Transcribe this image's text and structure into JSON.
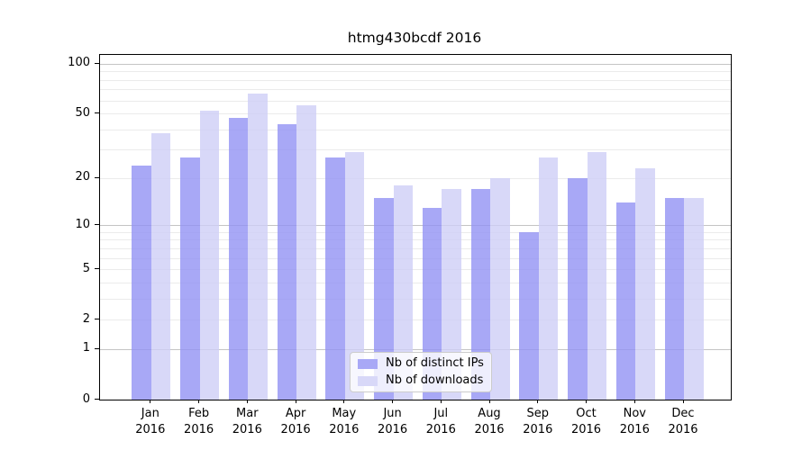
{
  "chart_data": {
    "type": "bar",
    "title": "htmg430bcdf 2016",
    "categories": [
      {
        "line1": "Jan",
        "line2": "2016"
      },
      {
        "line1": "Feb",
        "line2": "2016"
      },
      {
        "line1": "Mar",
        "line2": "2016"
      },
      {
        "line1": "Apr",
        "line2": "2016"
      },
      {
        "line1": "May",
        "line2": "2016"
      },
      {
        "line1": "Jun",
        "line2": "2016"
      },
      {
        "line1": "Jul",
        "line2": "2016"
      },
      {
        "line1": "Aug",
        "line2": "2016"
      },
      {
        "line1": "Sep",
        "line2": "2016"
      },
      {
        "line1": "Oct",
        "line2": "2016"
      },
      {
        "line1": "Nov",
        "line2": "2016"
      },
      {
        "line1": "Dec",
        "line2": "2016"
      }
    ],
    "series": [
      {
        "name": "Nb of distinct IPs",
        "values": [
          24,
          27,
          47,
          43,
          27,
          15,
          13,
          17,
          9,
          20,
          14,
          15
        ],
        "fill": "rgba(146,146,244,0.8)",
        "legend_color": "#a8a8f6"
      },
      {
        "name": "Nb of downloads",
        "values": [
          38,
          52,
          66,
          56,
          29,
          18,
          17,
          20,
          27,
          29,
          23,
          15
        ],
        "fill": "rgba(206,206,246,0.8)",
        "legend_color": "#d8d8f8"
      }
    ],
    "xlabel": "",
    "ylabel": "",
    "yscale": "log1p",
    "ylim": [
      0,
      113
    ],
    "y_ticks": [
      0,
      1,
      2,
      5,
      10,
      20,
      50,
      100
    ],
    "y_major_gridlines": [
      1,
      10,
      100
    ],
    "y_minor_gridlines": [
      2,
      3,
      4,
      5,
      6,
      7,
      8,
      9,
      20,
      30,
      40,
      50,
      60,
      70,
      80,
      90
    ],
    "grid": true,
    "legend_position": "lower center",
    "colors": {
      "major_grid": "#c4c4c4",
      "minor_grid": "#ebebeb",
      "axis": "#000000",
      "background": "#ffffff"
    }
  }
}
